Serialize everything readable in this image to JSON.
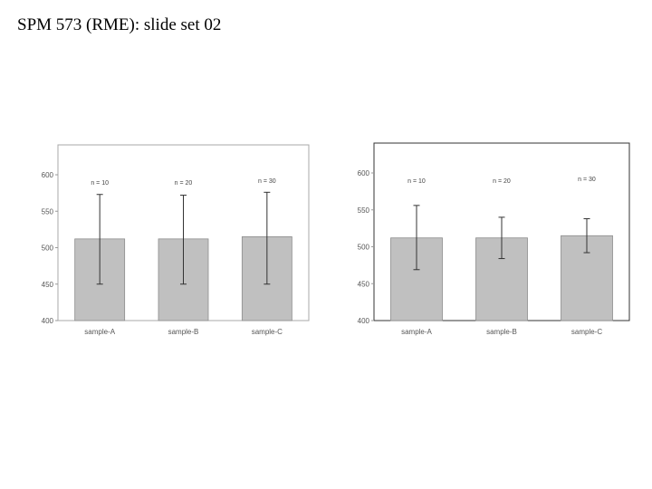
{
  "slide": {
    "title": "SPM 573 (RME): slide set 02"
  },
  "chart_data": [
    {
      "type": "bar",
      "title": "",
      "xlabel": "",
      "ylabel": "",
      "categories": [
        "sample-A",
        "sample-B",
        "sample-C"
      ],
      "values": [
        512,
        512,
        515
      ],
      "error": [
        [
          450,
          573
        ],
        [
          450,
          572
        ],
        [
          450,
          576
        ]
      ],
      "annotations": [
        "n = 10",
        "n = 20",
        "n = 30"
      ],
      "ylim": [
        400,
        600
      ],
      "yticks": [
        400,
        450,
        500,
        550,
        600
      ],
      "grid": false,
      "legend": "none",
      "colors": {
        "bar": "#c0c0c0",
        "bar_edge": "#8c8c8c",
        "error_bar": "#333333",
        "frame": "#a8a8a8"
      }
    },
    {
      "type": "bar",
      "title": "",
      "xlabel": "",
      "ylabel": "",
      "categories": [
        "sample-A",
        "sample-B",
        "sample-C"
      ],
      "values": [
        512,
        512,
        515
      ],
      "error": [
        [
          469,
          556
        ],
        [
          484,
          540
        ],
        [
          492,
          538
        ]
      ],
      "annotations": [
        "n = 10",
        "n = 20",
        "n = 30"
      ],
      "ylim": [
        400,
        600
      ],
      "yticks": [
        400,
        450,
        500,
        550,
        600
      ],
      "grid": false,
      "legend": "none",
      "colors": {
        "bar": "#c0c0c0",
        "bar_edge": "#8c8c8c",
        "error_bar": "#333333",
        "frame": "#333333"
      }
    }
  ]
}
